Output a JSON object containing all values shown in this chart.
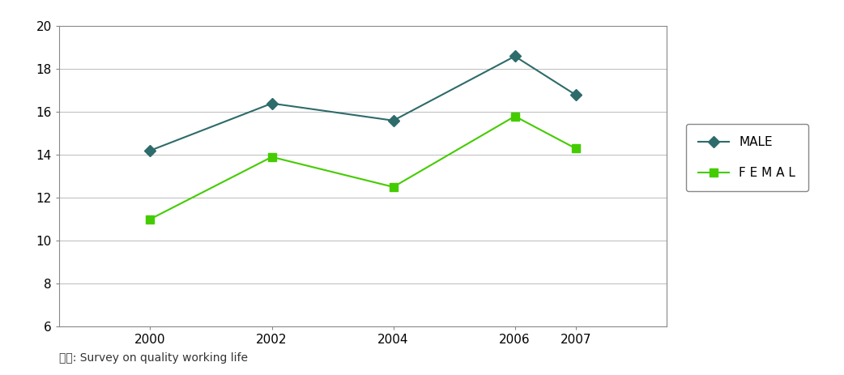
{
  "years": [
    2000,
    2002,
    2004,
    2006,
    2007
  ],
  "male_values": [
    14.2,
    16.4,
    15.6,
    18.6,
    16.8
  ],
  "female_values": [
    11.0,
    13.9,
    12.5,
    15.8,
    14.3
  ],
  "male_color": "#2e6b6b",
  "female_color": "#44cc00",
  "male_label": "MALE",
  "female_label": "F E M A L",
  "ylim": [
    6,
    20
  ],
  "yticks": [
    6,
    8,
    10,
    12,
    14,
    16,
    18,
    20
  ],
  "xlim_left": 1998.5,
  "xlim_right": 2008.5,
  "footnote": "출자: Survey on quality working life",
  "background_color": "#ffffff",
  "grid_color": "#bbbbbb",
  "tick_fontsize": 11,
  "legend_fontsize": 11
}
